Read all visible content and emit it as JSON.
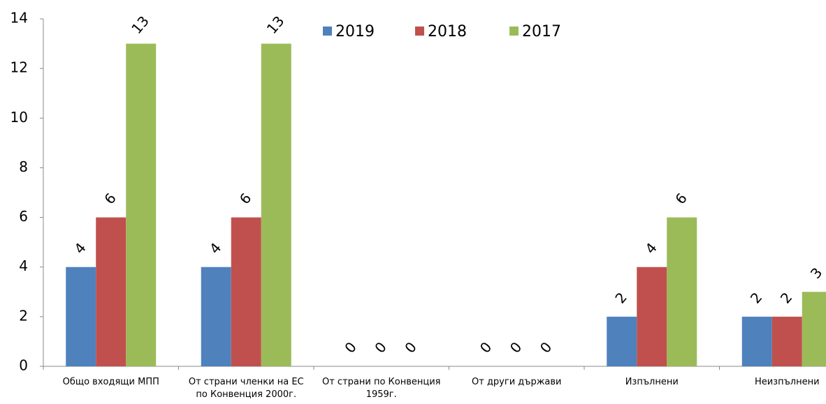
{
  "chart_data": {
    "type": "bar",
    "categories": [
      "Общо входящи МПП",
      "От страни членки на ЕС по Конвенция 2000г.",
      "От страни по Конвенция 1959г.",
      "От други държави",
      "Изпълнени",
      "Неизпълнени"
    ],
    "series": [
      {
        "name": "2019",
        "color": "#4f81bd",
        "values": [
          4,
          4,
          0,
          0,
          2,
          2
        ]
      },
      {
        "name": "2018",
        "color": "#c0504d",
        "values": [
          6,
          6,
          0,
          0,
          4,
          2
        ]
      },
      {
        "name": "2017",
        "color": "#9bbb59",
        "values": [
          13,
          13,
          0,
          0,
          6,
          3
        ]
      }
    ],
    "ylim": [
      0,
      14
    ],
    "yticks": [
      0,
      2,
      4,
      6,
      8,
      10,
      12,
      14
    ],
    "grid": false,
    "legend": "top"
  }
}
